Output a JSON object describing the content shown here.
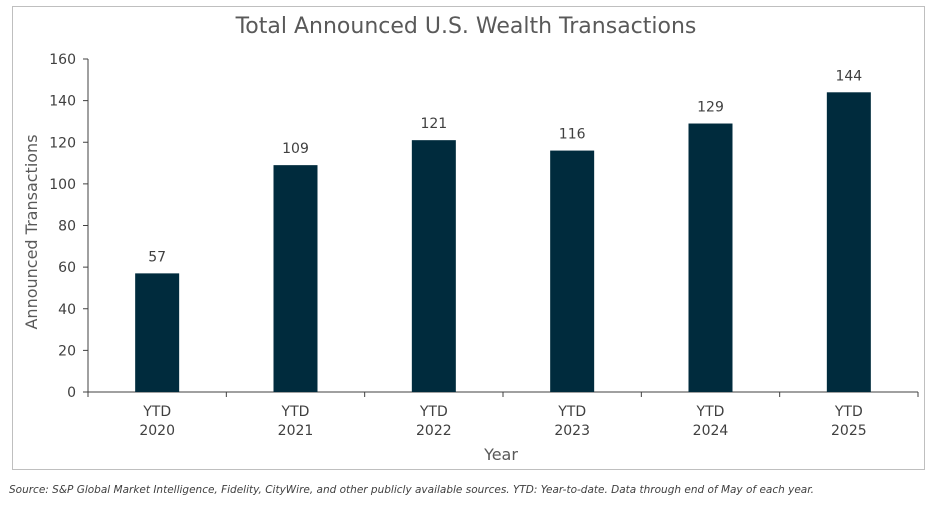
{
  "chart_data": {
    "type": "bar",
    "title": "Total Announced U.S. Wealth Transactions",
    "xlabel": "Year",
    "ylabel": "Announced Transactions",
    "categories": [
      [
        "YTD",
        "2020"
      ],
      [
        "YTD",
        "2021"
      ],
      [
        "YTD",
        "2022"
      ],
      [
        "YTD",
        "2023"
      ],
      [
        "YTD",
        "2024"
      ],
      [
        "YTD",
        "2025"
      ]
    ],
    "values": [
      57,
      109,
      121,
      116,
      129,
      144
    ],
    "data_labels": [
      "57",
      "109",
      "121",
      "116",
      "129",
      "144"
    ],
    "ylim": [
      0,
      160
    ],
    "yticks": [
      "0",
      "20",
      "40",
      "60",
      "80",
      "100",
      "120",
      "140",
      "160"
    ],
    "bar_color": "#002b3d",
    "grid": false,
    "legend": "none"
  },
  "footer": {
    "source": "Source: S&P Global Market Intelligence, Fidelity, CityWire, and other publicly available sources. YTD: Year-to-date. Data through end of May of each year."
  }
}
